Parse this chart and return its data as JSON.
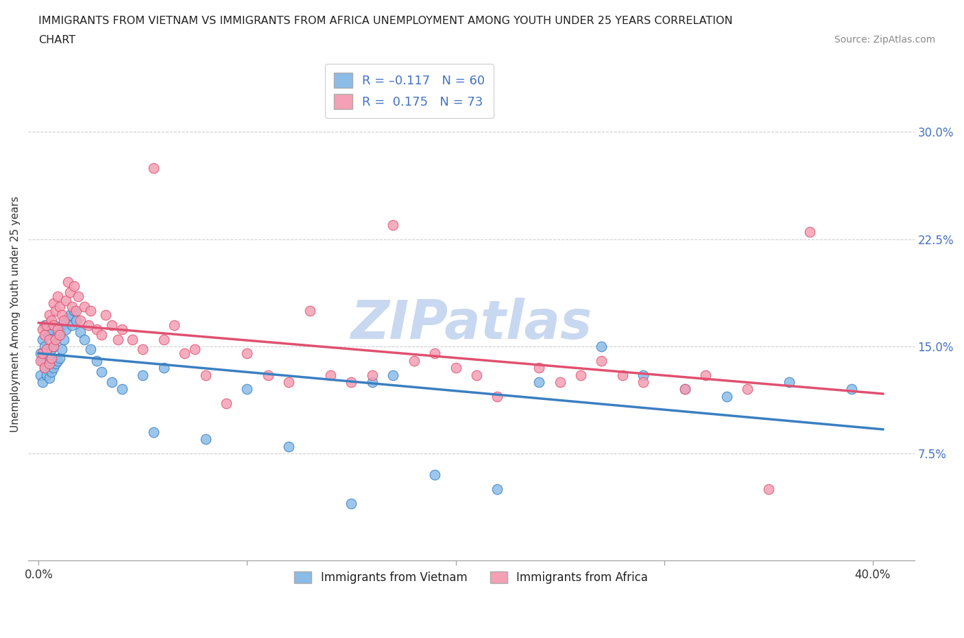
{
  "title_line1": "IMMIGRANTS FROM VIETNAM VS IMMIGRANTS FROM AFRICA UNEMPLOYMENT AMONG YOUTH UNDER 25 YEARS CORRELATION",
  "title_line2": "CHART",
  "source": "Source: ZipAtlas.com",
  "ylabel": "Unemployment Among Youth under 25 years",
  "y_ticks_right": [
    0.075,
    0.15,
    0.225,
    0.3
  ],
  "y_tick_labels_right": [
    "7.5%",
    "15.0%",
    "22.5%",
    "30.0%"
  ],
  "xlim": [
    -0.005,
    0.42
  ],
  "ylim": [
    0.0,
    0.345
  ],
  "color_vietnam": "#8bbce8",
  "color_africa": "#f4a0b5",
  "color_vietnam_line": "#3a7fc1",
  "color_africa_line": "#e05070",
  "color_blue_text": "#4472c4",
  "watermark": "ZIPatlas",
  "watermark_color": "#c8d8f0",
  "background_color": "#ffffff",
  "vietnam_x": [
    0.001,
    0.001,
    0.002,
    0.002,
    0.002,
    0.003,
    0.003,
    0.003,
    0.004,
    0.004,
    0.004,
    0.005,
    0.005,
    0.005,
    0.006,
    0.006,
    0.006,
    0.007,
    0.007,
    0.007,
    0.008,
    0.008,
    0.009,
    0.009,
    0.01,
    0.01,
    0.011,
    0.011,
    0.012,
    0.013,
    0.014,
    0.015,
    0.016,
    0.017,
    0.018,
    0.02,
    0.022,
    0.025,
    0.028,
    0.03,
    0.035,
    0.04,
    0.05,
    0.055,
    0.06,
    0.08,
    0.1,
    0.12,
    0.15,
    0.16,
    0.17,
    0.19,
    0.22,
    0.24,
    0.27,
    0.29,
    0.31,
    0.33,
    0.36,
    0.39
  ],
  "vietnam_y": [
    0.13,
    0.145,
    0.125,
    0.14,
    0.155,
    0.135,
    0.15,
    0.165,
    0.13,
    0.145,
    0.16,
    0.128,
    0.142,
    0.158,
    0.132,
    0.148,
    0.162,
    0.135,
    0.15,
    0.165,
    0.138,
    0.155,
    0.14,
    0.158,
    0.142,
    0.16,
    0.148,
    0.165,
    0.155,
    0.162,
    0.17,
    0.172,
    0.165,
    0.175,
    0.168,
    0.16,
    0.155,
    0.148,
    0.14,
    0.132,
    0.125,
    0.12,
    0.13,
    0.09,
    0.135,
    0.085,
    0.12,
    0.08,
    0.04,
    0.125,
    0.13,
    0.06,
    0.05,
    0.125,
    0.15,
    0.13,
    0.12,
    0.115,
    0.125,
    0.12
  ],
  "africa_x": [
    0.001,
    0.002,
    0.002,
    0.003,
    0.003,
    0.004,
    0.004,
    0.005,
    0.005,
    0.005,
    0.006,
    0.006,
    0.007,
    0.007,
    0.007,
    0.008,
    0.008,
    0.009,
    0.009,
    0.01,
    0.01,
    0.011,
    0.012,
    0.013,
    0.014,
    0.015,
    0.016,
    0.017,
    0.018,
    0.019,
    0.02,
    0.022,
    0.024,
    0.025,
    0.028,
    0.03,
    0.032,
    0.035,
    0.038,
    0.04,
    0.045,
    0.05,
    0.055,
    0.06,
    0.065,
    0.07,
    0.075,
    0.08,
    0.09,
    0.1,
    0.11,
    0.12,
    0.13,
    0.14,
    0.15,
    0.16,
    0.17,
    0.18,
    0.19,
    0.2,
    0.21,
    0.22,
    0.24,
    0.25,
    0.26,
    0.27,
    0.28,
    0.29,
    0.31,
    0.32,
    0.34,
    0.35,
    0.37
  ],
  "africa_y": [
    0.14,
    0.145,
    0.162,
    0.135,
    0.158,
    0.148,
    0.165,
    0.138,
    0.155,
    0.172,
    0.142,
    0.168,
    0.15,
    0.165,
    0.18,
    0.155,
    0.175,
    0.162,
    0.185,
    0.158,
    0.178,
    0.172,
    0.168,
    0.182,
    0.195,
    0.188,
    0.178,
    0.192,
    0.175,
    0.185,
    0.168,
    0.178,
    0.165,
    0.175,
    0.162,
    0.158,
    0.172,
    0.165,
    0.155,
    0.162,
    0.155,
    0.148,
    0.275,
    0.155,
    0.165,
    0.145,
    0.148,
    0.13,
    0.11,
    0.145,
    0.13,
    0.125,
    0.175,
    0.13,
    0.125,
    0.13,
    0.235,
    0.14,
    0.145,
    0.135,
    0.13,
    0.115,
    0.135,
    0.125,
    0.13,
    0.14,
    0.13,
    0.125,
    0.12,
    0.13,
    0.12,
    0.05,
    0.23
  ]
}
